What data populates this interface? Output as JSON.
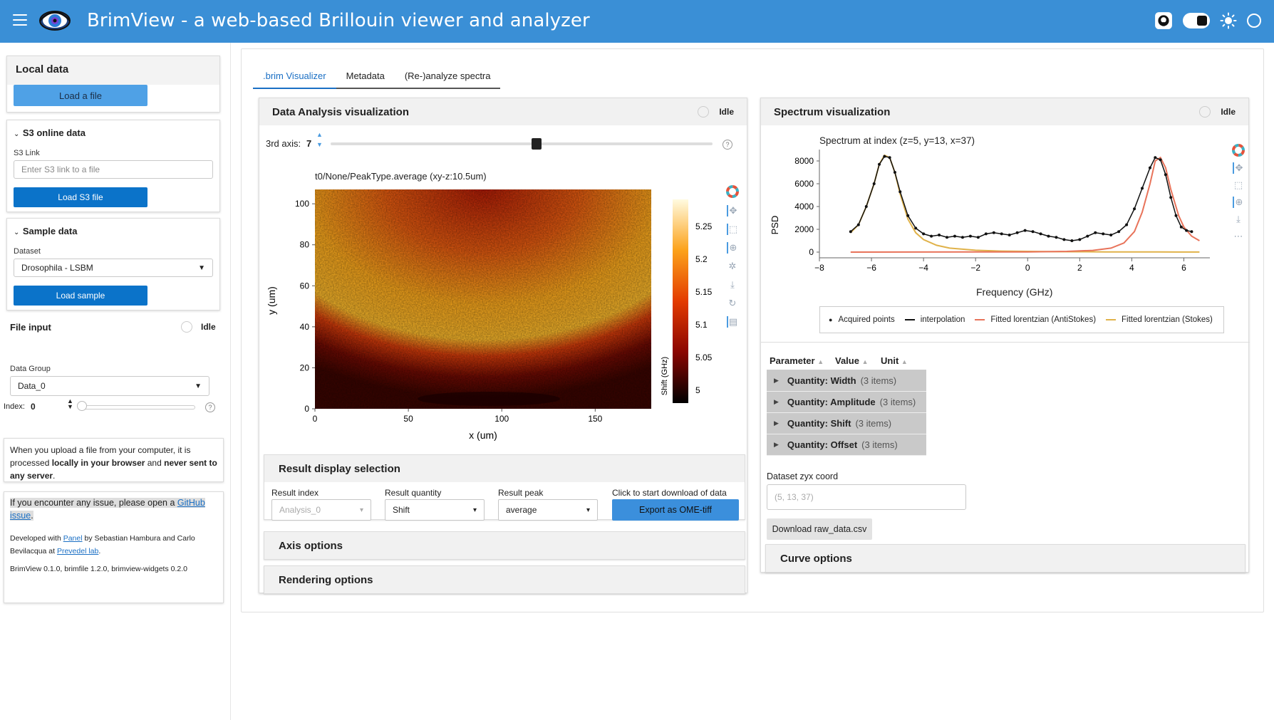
{
  "header": {
    "title": "BrimView - a web-based Brillouin viewer and analyzer"
  },
  "sidebar": {
    "local": {
      "title": "Local data",
      "load_label": "Load a file"
    },
    "s3": {
      "title": "S3 online data",
      "link_label": "S3 Link",
      "placeholder": "Enter S3 link to a file",
      "load_label": "Load S3 file"
    },
    "sample": {
      "title": "Sample data",
      "dataset_label": "Dataset",
      "dataset_value": "Drosophila - LSBM",
      "load_label": "Load sample"
    },
    "file_input": {
      "title": "File input",
      "status": "Idle",
      "group_label": "Data Group",
      "group_value": "Data_0",
      "index_label": "Index:",
      "index_value": "0"
    },
    "privacy": {
      "p1": "When you upload a file from your computer, it is processed ",
      "b1": "locally in your browser",
      "p2": " and ",
      "b2": "never sent to any server",
      "p3": "."
    },
    "about": {
      "issue_text": "If you encounter any issue, please open a ",
      "issue_link": "GitHub issue",
      "issue_end": ".",
      "dev_a": "Developed with ",
      "dev_panel": "Panel",
      "dev_b": " by Sebastian Hambura and Carlo Bevilacqua at ",
      "dev_lab": "Prevedel lab",
      "dev_c": ".",
      "versions": "BrimView 0.1.0, brimfile 1.2.0, brimview-widgets 0.2.0"
    }
  },
  "tabs": [
    ".brim Visualizer",
    "Metadata",
    "(Re-)analyze spectra"
  ],
  "analysis": {
    "title": "Data Analysis visualization",
    "status": "Idle",
    "axis_label": "3rd axis:",
    "axis_value": "7",
    "slider_fraction": 0.54,
    "heatmap_title": "t0/None/PeakType.average (xy-z:10.5um)",
    "xlabel": "x (um)",
    "ylabel": "y (um)",
    "xticks": [
      "0",
      "50",
      "100",
      "150"
    ],
    "yticks": [
      "0",
      "20",
      "40",
      "60",
      "80",
      "100"
    ],
    "cbar_label": "Shift (GHz)",
    "cbar_ticks": [
      "5.25",
      "5.2",
      "5.15",
      "5.1",
      "5.05",
      "5"
    ]
  },
  "result_display": {
    "title": "Result display selection",
    "index_label": "Result index",
    "index_value": "Analysis_0",
    "quantity_label": "Result quantity",
    "quantity_value": "Shift",
    "peak_label": "Result peak",
    "peak_value": "average",
    "download_label": "Click to start download of data",
    "export_label": "Export as OME-tiff"
  },
  "axis_options": "Axis options",
  "rendering_options": "Rendering options",
  "spectrum": {
    "title": "Spectrum visualization",
    "status": "Idle",
    "plot_title": "Spectrum at index (z=5, y=13, x=37)",
    "xlabel": "Frequency (GHz)",
    "ylabel": "PSD",
    "legend": [
      "Acquired points",
      "interpolation",
      "Fitted lorentzian (AntiStokes)",
      "Fitted lorentzian (Stokes)"
    ],
    "colors": {
      "points": "#111111",
      "interp": "#111111",
      "antistokes": "#e8735a",
      "stokes": "#e0b24a"
    },
    "table_headers": [
      "Parameter",
      "Value",
      "Unit"
    ],
    "rows": [
      {
        "label": "Quantity: Width",
        "count": "(3 items)"
      },
      {
        "label": "Quantity: Amplitude",
        "count": "(3 items)"
      },
      {
        "label": "Quantity: Shift",
        "count": "(3 items)"
      },
      {
        "label": "Quantity: Offset",
        "count": "(3 items)"
      }
    ],
    "coord_label": "Dataset zyx coord",
    "coord_value": "(5, 13, 37)",
    "download_label": "Download raw_data.csv",
    "curve_options": "Curve options"
  },
  "chart_data": {
    "type": "line",
    "title": "Spectrum at index (z=5, y=13, x=37)",
    "xlabel": "Frequency (GHz)",
    "ylabel": "PSD",
    "xlim": [
      -8,
      7
    ],
    "ylim": [
      -500,
      9000
    ],
    "xticks": [
      -8,
      -6,
      -4,
      -2,
      0,
      2,
      4,
      6
    ],
    "yticks": [
      0,
      2000,
      4000,
      6000,
      8000
    ],
    "series": [
      {
        "name": "Acquired points",
        "x": [
          -6.8,
          -6.5,
          -6.2,
          -5.9,
          -5.7,
          -5.5,
          -5.3,
          -5.1,
          -4.9,
          -4.6,
          -4.3,
          -4.0,
          -3.7,
          -3.4,
          -3.1,
          -2.8,
          -2.5,
          -2.2,
          -1.9,
          -1.6,
          -1.3,
          -1.0,
          -0.7,
          -0.4,
          -0.1,
          0.2,
          0.5,
          0.8,
          1.1,
          1.4,
          1.7,
          2.0,
          2.3,
          2.6,
          2.9,
          3.2,
          3.5,
          3.8,
          4.1,
          4.4,
          4.7,
          4.9,
          5.1,
          5.3,
          5.5,
          5.7,
          5.9,
          6.1,
          6.3
        ],
        "y": [
          1800,
          2400,
          4000,
          6000,
          7700,
          8400,
          8300,
          7000,
          5300,
          3200,
          2100,
          1600,
          1400,
          1500,
          1300,
          1400,
          1300,
          1400,
          1300,
          1600,
          1700,
          1600,
          1500,
          1700,
          1900,
          1800,
          1600,
          1400,
          1300,
          1100,
          1000,
          1100,
          1400,
          1700,
          1600,
          1500,
          1800,
          2400,
          3800,
          5600,
          7400,
          8300,
          8100,
          6800,
          4800,
          3200,
          2200,
          1900,
          1800
        ]
      },
      {
        "name": "Fitted lorentzian (AntiStokes)",
        "x": [
          -6.8,
          -2.0,
          0.0,
          1.5,
          2.5,
          3.2,
          3.7,
          4.1,
          4.4,
          4.7,
          4.9,
          5.1,
          5.3,
          5.5,
          5.8,
          6.0,
          6.3,
          6.6
        ],
        "y": [
          0,
          10,
          20,
          60,
          150,
          350,
          800,
          1800,
          3500,
          6000,
          8000,
          8300,
          7400,
          5500,
          3200,
          2200,
          1400,
          1000
        ]
      },
      {
        "name": "Fitted lorentzian (Stokes)",
        "x": [
          -6.8,
          -6.5,
          -6.2,
          -5.9,
          -5.7,
          -5.5,
          -5.3,
          -5.1,
          -4.9,
          -4.6,
          -4.3,
          -4.0,
          -3.5,
          -3.0,
          -2.0,
          -1.0,
          0.0,
          1.0,
          2.0,
          3.0,
          4.0,
          5.0,
          6.0,
          6.6
        ],
        "y": [
          1700,
          2400,
          4000,
          6000,
          7700,
          8500,
          8300,
          7000,
          5100,
          2900,
          1700,
          1100,
          600,
          350,
          160,
          90,
          60,
          40,
          30,
          20,
          15,
          10,
          8,
          5
        ]
      }
    ]
  }
}
